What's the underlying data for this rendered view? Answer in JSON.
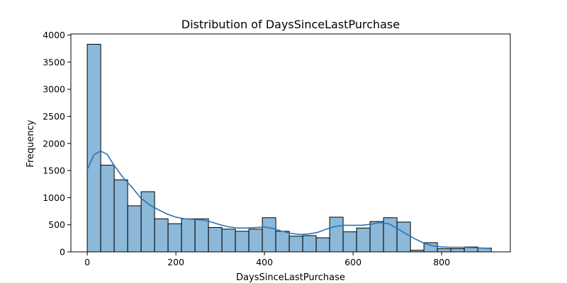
{
  "chart_data": {
    "type": "bar",
    "title": "Distribution of DaysSinceLastPurchase",
    "xlabel": "DaysSinceLastPurchase",
    "ylabel": "Frequency",
    "xlim": [
      -37,
      955
    ],
    "ylim": [
      0,
      4020
    ],
    "x_ticks": [
      0,
      200,
      400,
      600,
      800
    ],
    "y_ticks": [
      0,
      500,
      1000,
      1500,
      2000,
      2500,
      3000,
      3500,
      4000
    ],
    "bin_width": 30.4,
    "bins_start": [
      0,
      30.4,
      60.8,
      91.2,
      121.6,
      152,
      182.4,
      212.8,
      243.2,
      273.6,
      304,
      334.4,
      364.8,
      395.2,
      425.6,
      456,
      486.4,
      516.8,
      547.2,
      577.6,
      608,
      638.4,
      668.8,
      699.2,
      729.6,
      760,
      790.4,
      820.8,
      851.2,
      881.6
    ],
    "values": [
      3830,
      1600,
      1330,
      850,
      1110,
      610,
      520,
      610,
      610,
      450,
      420,
      380,
      420,
      630,
      380,
      290,
      300,
      260,
      640,
      370,
      440,
      560,
      630,
      550,
      30,
      170,
      60,
      60,
      90,
      70
    ],
    "kde": {
      "name": "",
      "x": [
        0,
        15,
        30,
        45,
        60,
        80,
        100,
        120,
        140,
        160,
        180,
        200,
        220,
        240,
        260,
        280,
        300,
        320,
        340,
        360,
        380,
        400,
        420,
        440,
        460,
        480,
        500,
        520,
        540,
        560,
        580,
        600,
        620,
        640,
        660,
        680,
        700,
        720,
        740,
        760,
        780,
        800,
        820,
        840,
        860,
        880,
        910
      ],
      "y": [
        1520,
        1790,
        1860,
        1800,
        1600,
        1380,
        1200,
        1000,
        870,
        780,
        700,
        640,
        610,
        600,
        590,
        550,
        500,
        460,
        440,
        440,
        450,
        460,
        430,
        380,
        340,
        320,
        330,
        360,
        420,
        470,
        490,
        490,
        490,
        510,
        540,
        520,
        430,
        330,
        240,
        160,
        110,
        90,
        85,
        85,
        80,
        75,
        65
      ]
    },
    "colors": {
      "bar_fill": "#8cb8d9",
      "bar_edge": "#000000",
      "kde_line": "#2a75b5",
      "axis": "#000000"
    },
    "grid": false,
    "legend": "none"
  }
}
